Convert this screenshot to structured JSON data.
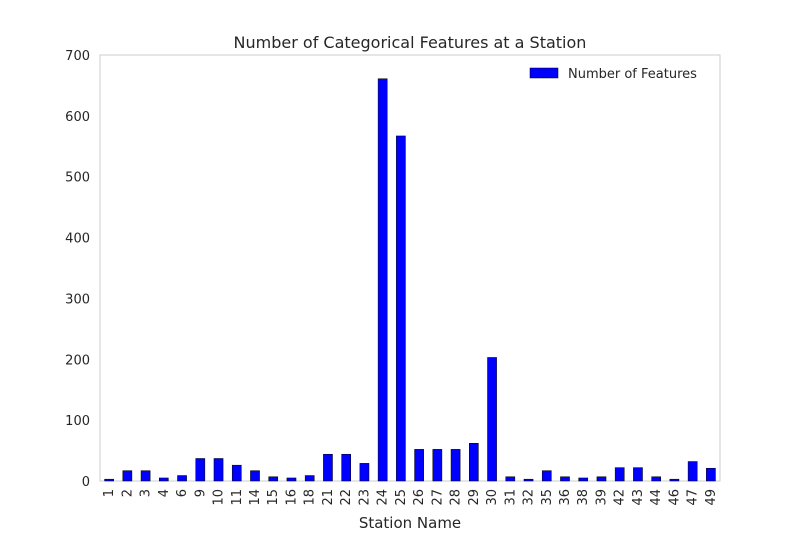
{
  "chart_data": {
    "type": "bar",
    "title": "Number of Categorical Features at a Station",
    "xlabel": "Station Name",
    "ylabel": "",
    "ylim": [
      0,
      700
    ],
    "yticks": [
      0,
      100,
      200,
      300,
      400,
      500,
      600,
      700
    ],
    "grid": false,
    "legend_position": "top-right",
    "bar_color": "#0000ff",
    "categories": [
      "1",
      "2",
      "3",
      "4",
      "6",
      "9",
      "10",
      "11",
      "14",
      "15",
      "16",
      "18",
      "21",
      "22",
      "23",
      "24",
      "25",
      "26",
      "27",
      "28",
      "29",
      "30",
      "31",
      "32",
      "35",
      "36",
      "38",
      "39",
      "42",
      "43",
      "44",
      "46",
      "47",
      "49"
    ],
    "series": [
      {
        "name": "Number of Features",
        "values": [
          3,
          17,
          17,
          5,
          9,
          37,
          37,
          26,
          17,
          7,
          5,
          9,
          44,
          44,
          29,
          661,
          567,
          52,
          52,
          52,
          62,
          203,
          7,
          3,
          17,
          7,
          5,
          7,
          22,
          22,
          7,
          3,
          32,
          21
        ]
      }
    ]
  }
}
